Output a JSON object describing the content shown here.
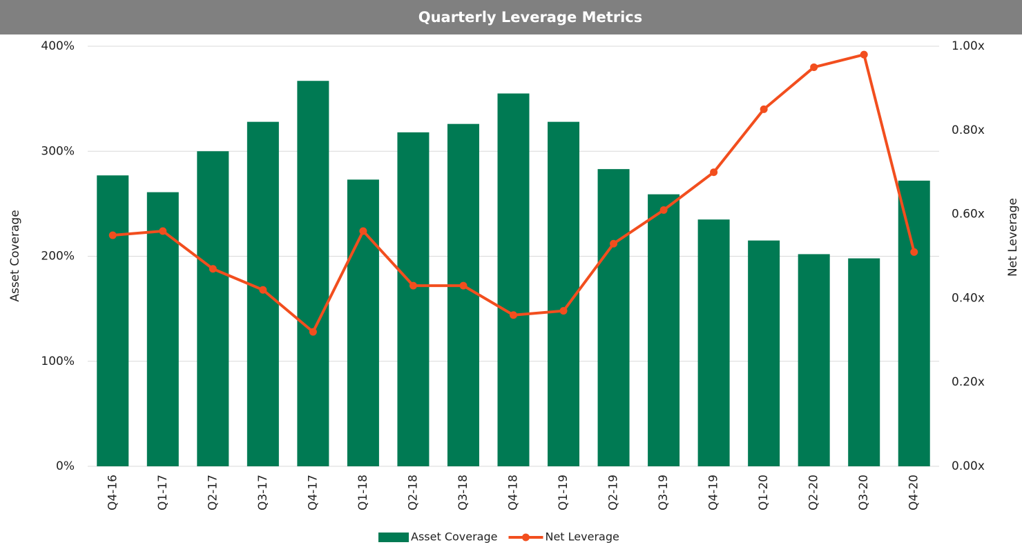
{
  "chart_data": {
    "type": "bar",
    "title": "Quarterly Leverage Metrics",
    "categories": [
      "Q4-16",
      "Q1-17",
      "Q2-17",
      "Q3-17",
      "Q4-17",
      "Q1-18",
      "Q2-18",
      "Q3-18",
      "Q4-18",
      "Q1-19",
      "Q2-19",
      "Q3-19",
      "Q4-19",
      "Q1-20",
      "Q2-20",
      "Q3-20",
      "Q4-20"
    ],
    "series": [
      {
        "name": "Asset Coverage",
        "type": "bar",
        "color": "#007a53",
        "values": [
          277,
          261,
          300,
          328,
          367,
          273,
          318,
          326,
          355,
          328,
          283,
          259,
          235,
          215,
          202,
          198,
          272
        ]
      },
      {
        "name": "Net Leverage",
        "type": "line",
        "axis": "y2",
        "color": "#f24e1e",
        "values": [
          0.55,
          0.56,
          0.47,
          0.42,
          0.32,
          0.56,
          0.43,
          0.43,
          0.36,
          0.37,
          0.53,
          0.61,
          0.7,
          0.85,
          0.95,
          0.98,
          0.51
        ]
      }
    ],
    "ylabel": "Asset Coverage",
    "y2label": "Net Leverage",
    "ylim": [
      0,
      400
    ],
    "yticks": [
      {
        "value": 0,
        "label": "0%"
      },
      {
        "value": 100,
        "label": "100%"
      },
      {
        "value": 200,
        "label": "200%"
      },
      {
        "value": 300,
        "label": "300%"
      },
      {
        "value": 400,
        "label": "400%"
      }
    ],
    "y2lim": [
      0,
      1
    ],
    "y2ticks": [
      {
        "value": 0,
        "label": "0.00x"
      },
      {
        "value": 0.2,
        "label": "0.20x"
      },
      {
        "value": 0.4,
        "label": "0.40x"
      },
      {
        "value": 0.6,
        "label": "0.60x"
      },
      {
        "value": 0.8,
        "label": "0.80x"
      },
      {
        "value": 1,
        "label": "1.00x"
      }
    ],
    "grid": true,
    "legend": "bottom"
  }
}
